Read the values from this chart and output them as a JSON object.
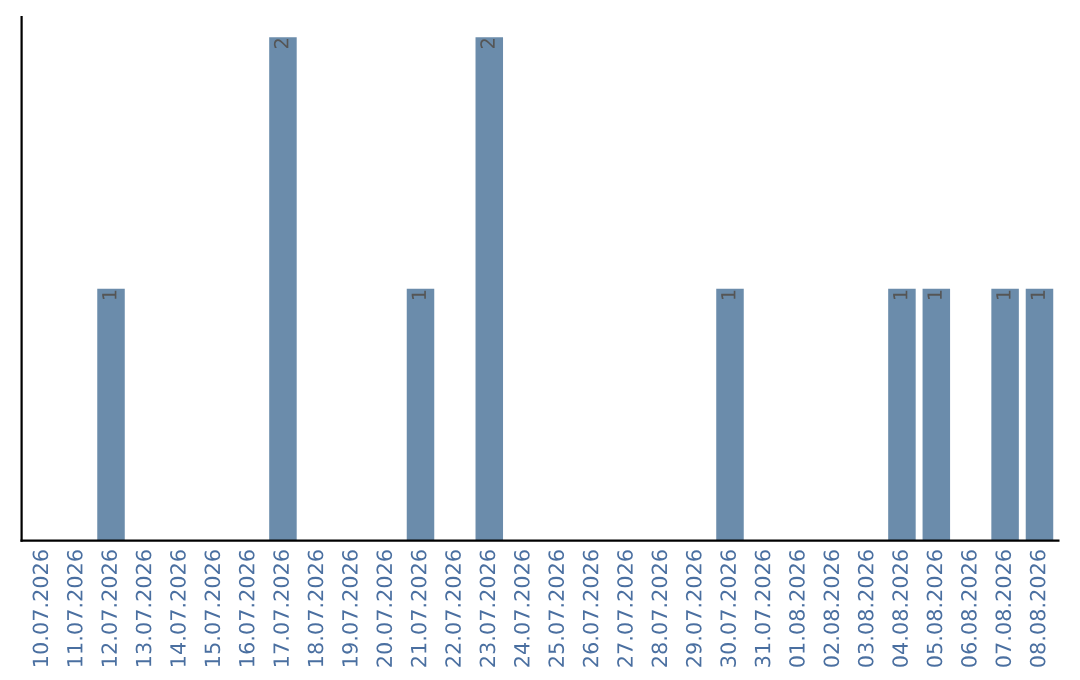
{
  "chart_data": {
    "type": "bar",
    "categories": [
      "10.07.2026",
      "11.07.2026",
      "12.07.2026",
      "13.07.2026",
      "14.07.2026",
      "15.07.2026",
      "16.07.2026",
      "17.07.2026",
      "18.07.2026",
      "19.07.2026",
      "20.07.2026",
      "21.07.2026",
      "22.07.2026",
      "23.07.2026",
      "24.07.2026",
      "25.07.2026",
      "26.07.2026",
      "27.07.2026",
      "28.07.2026",
      "29.07.2026",
      "30.07.2026",
      "31.07.2026",
      "01.08.2026",
      "02.08.2026",
      "03.08.2026",
      "04.08.2026",
      "05.08.2026",
      "06.08.2026",
      "07.08.2026",
      "08.08.2026"
    ],
    "values": [
      0,
      0,
      1,
      0,
      0,
      0,
      0,
      2,
      0,
      0,
      0,
      1,
      0,
      2,
      0,
      0,
      0,
      0,
      0,
      0,
      1,
      0,
      0,
      0,
      0,
      1,
      1,
      0,
      1,
      1
    ],
    "value_labels": [
      null,
      null,
      "1",
      null,
      null,
      null,
      null,
      "2",
      null,
      null,
      null,
      "1",
      null,
      "2",
      null,
      null,
      null,
      null,
      null,
      null,
      "1",
      null,
      null,
      null,
      null,
      "1",
      "1",
      null,
      "1",
      "1"
    ],
    "color": "#6b8cab",
    "tick_labels": "x",
    "grid": false,
    "legend": false
  }
}
